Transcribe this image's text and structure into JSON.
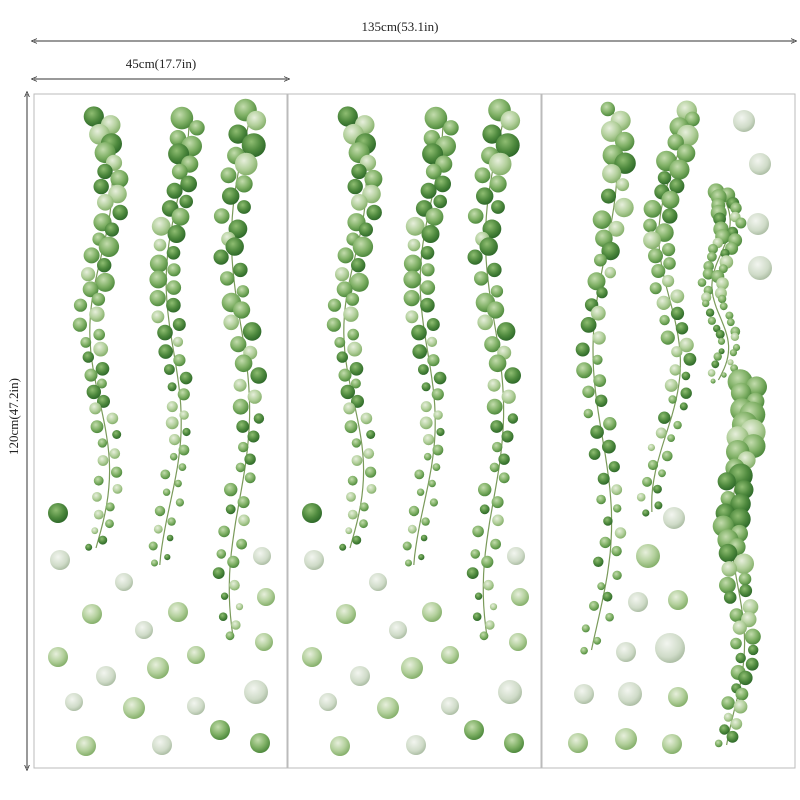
{
  "dimensions": {
    "total_width": "135cm(53.1in)",
    "panel_width": "45cm(17.7in)",
    "height": "120cm(47.2in)"
  },
  "panels": [
    {
      "name": "panel-1"
    },
    {
      "name": "panel-2"
    },
    {
      "name": "panel-3"
    }
  ],
  "colors": {
    "leaf_dark": "#3f7a34",
    "leaf_mid": "#6aa055",
    "leaf_light": "#a8c995",
    "dot_pale": "#c9d8c2",
    "stem": "#7a9a5a",
    "border": "#bbbbbb",
    "arrow": "#333333"
  }
}
